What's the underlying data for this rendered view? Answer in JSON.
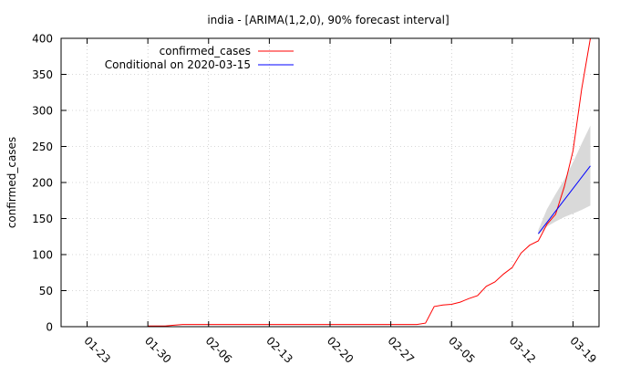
{
  "chart_data": {
    "type": "line",
    "title": "india -  [ARIMA(1,2,0), 90% forecast interval]",
    "xlabel": "",
    "ylabel": "confirmed_cases",
    "ylim": [
      0,
      400
    ],
    "xlim": [
      "2020-01-20",
      "2020-03-22"
    ],
    "grid": true,
    "legend_position": "top-left",
    "x_ticks": [
      "01-23",
      "01-30",
      "02-06",
      "02-13",
      "02-20",
      "02-27",
      "03-05",
      "03-12",
      "03-19"
    ],
    "x_tick_dates": [
      "2020-01-23",
      "2020-01-30",
      "2020-02-06",
      "2020-02-13",
      "2020-02-20",
      "2020-02-27",
      "2020-03-05",
      "2020-03-12",
      "2020-03-19"
    ],
    "y_ticks": [
      0,
      50,
      100,
      150,
      200,
      250,
      300,
      350,
      400
    ],
    "series": [
      {
        "name": "confirmed_cases",
        "color": "#ff0000",
        "x": [
          "2020-01-30",
          "2020-01-31",
          "2020-02-01",
          "2020-02-02",
          "2020-02-03",
          "2020-02-10",
          "2020-02-20",
          "2020-03-01",
          "2020-03-02",
          "2020-03-03",
          "2020-03-04",
          "2020-03-05",
          "2020-03-06",
          "2020-03-07",
          "2020-03-08",
          "2020-03-09",
          "2020-03-10",
          "2020-03-11",
          "2020-03-12",
          "2020-03-13",
          "2020-03-14",
          "2020-03-15",
          "2020-03-16",
          "2020-03-17",
          "2020-03-18",
          "2020-03-19",
          "2020-03-20",
          "2020-03-21"
        ],
        "values": [
          1,
          1,
          1,
          2,
          3,
          3,
          3,
          3,
          5,
          28,
          30,
          31,
          34,
          39,
          43,
          56,
          62,
          73,
          82,
          102,
          113,
          119,
          142,
          156,
          194,
          244,
          330,
          400
        ]
      },
      {
        "name": "Conditional on 2020-03-15",
        "color": "#0000ff",
        "x": [
          "2020-03-15",
          "2020-03-21"
        ],
        "values": [
          129,
          223
        ]
      }
    ],
    "forecast_interval": {
      "color": "#d9d9d9",
      "x": [
        "2020-03-15",
        "2020-03-16",
        "2020-03-17",
        "2020-03-18",
        "2020-03-19",
        "2020-03-20",
        "2020-03-21"
      ],
      "lower": [
        127,
        139,
        146,
        152,
        157,
        162,
        168
      ],
      "upper": [
        134,
        163,
        184,
        204,
        228,
        254,
        279
      ]
    }
  }
}
